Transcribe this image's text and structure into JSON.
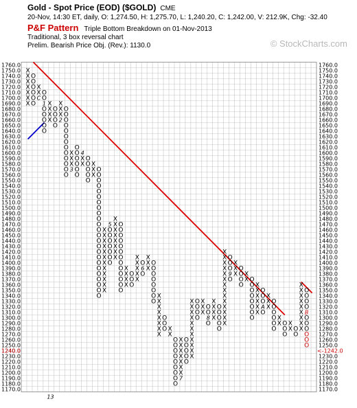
{
  "header": {
    "title": "Gold - Spot Price (EOD) ($GOLD)",
    "exchange": "CME",
    "quote": "20-Nov, 14:30 ET, daily, O: 1,274.50, H: 1,275.70, L: 1,240.20, C: 1,242.00, V: 212.9K, Chg: -32.40",
    "pattern_label": "P&F Pattern",
    "pattern_text": "Triple Bottom Breakdown on 01-Nov-2013",
    "method": "Traditional, 3 box reversal chart",
    "objective": "Prelim. Bearish Price Obj. (Rev.): 1130.0"
  },
  "watermark": "© StockCharts.com",
  "colors": {
    "x": "#000000",
    "o": "#000000",
    "current": "#cc0000",
    "trendline": "#dd0000",
    "support": "#0000cc",
    "grid": "#c8c8c8"
  },
  "chart_data": {
    "type": "point-and-figure",
    "box_size": 10,
    "reversal": 3,
    "ylim": [
      1170,
      1760
    ],
    "y_ticks": [
      1760,
      1750,
      1740,
      1730,
      1720,
      1710,
      1700,
      1690,
      1680,
      1670,
      1660,
      1650,
      1640,
      1630,
      1620,
      1610,
      1600,
      1590,
      1580,
      1570,
      1560,
      1550,
      1540,
      1530,
      1520,
      1510,
      1500,
      1490,
      1480,
      1470,
      1460,
      1450,
      1440,
      1430,
      1420,
      1410,
      1400,
      1390,
      1380,
      1370,
      1360,
      1350,
      1340,
      1330,
      1320,
      1310,
      1300,
      1290,
      1280,
      1270,
      1260,
      1250,
      1240,
      1230,
      1220,
      1210,
      1200,
      1190,
      1180,
      1170
    ],
    "right_y_ticks": [
      1760,
      1750,
      1740,
      1730,
      1720,
      1710,
      1700,
      1690,
      1680,
      1670,
      1660,
      1650,
      1640,
      1630,
      1620,
      1610,
      1600,
      1590,
      1580,
      1570,
      1560,
      1550,
      1540,
      1530,
      1520,
      1510,
      1500,
      1490,
      1480,
      1470,
      1460,
      1450,
      1440,
      1430,
      1420,
      1410,
      1400,
      1390,
      1380,
      1370,
      1360,
      1350,
      1340,
      1330,
      1320,
      1310,
      1300,
      1290,
      1280,
      1270,
      1260,
      1250,
      1230,
      1220,
      1210,
      1200,
      1190,
      1180,
      1170
    ],
    "last_price_label": "1240.0",
    "last_price_right_label": "<-1242.0",
    "x_labels": [
      {
        "col": 4,
        "text": "13"
      }
    ],
    "columns": [
      {
        "type": "X",
        "low": 1690,
        "high": 1750
      },
      {
        "type": "O",
        "low": 1690,
        "high": 1740
      },
      {
        "type": "X",
        "low": 1700,
        "high": 1720,
        "labels": [
          {
            "price": 1700,
            "text": "C"
          }
        ]
      },
      {
        "type": "O",
        "low": 1640,
        "high": 1710,
        "labels": [
          {
            "price": 1690,
            "text": "1"
          }
        ]
      },
      {
        "type": "X",
        "low": 1660,
        "high": 1690
      },
      {
        "type": "O",
        "low": 1650,
        "high": 1680
      },
      {
        "type": "X",
        "low": 1660,
        "high": 1690,
        "labels": [
          {
            "price": 1660,
            "text": "2"
          }
        ]
      },
      {
        "type": "O",
        "low": 1560,
        "high": 1680
      },
      {
        "type": "X",
        "low": 1570,
        "high": 1600,
        "labels": [
          {
            "price": 1570,
            "text": "3"
          }
        ]
      },
      {
        "type": "O",
        "low": 1560,
        "high": 1610
      },
      {
        "type": "X",
        "low": 1580,
        "high": 1600,
        "labels": [
          {
            "price": 1600,
            "text": "4"
          }
        ]
      },
      {
        "type": "O",
        "low": 1550,
        "high": 1590
      },
      {
        "type": "X",
        "low": 1560,
        "high": 1580
      },
      {
        "type": "O",
        "low": 1340,
        "high": 1570
      },
      {
        "type": "X",
        "low": 1350,
        "high": 1460
      },
      {
        "type": "O",
        "low": 1400,
        "high": 1470,
        "labels": [
          {
            "price": 1470,
            "text": "5"
          }
        ]
      },
      {
        "type": "X",
        "low": 1410,
        "high": 1480
      },
      {
        "type": "O",
        "low": 1350,
        "high": 1470
      },
      {
        "type": "X",
        "low": 1360,
        "high": 1390
      },
      {
        "type": "O",
        "low": 1360,
        "high": 1380
      },
      {
        "type": "X",
        "low": 1370,
        "high": 1410
      },
      {
        "type": "O",
        "low": 1380,
        "high": 1400,
        "labels": [
          {
            "price": 1390,
            "text": "6"
          }
        ]
      },
      {
        "type": "X",
        "low": 1390,
        "high": 1410
      },
      {
        "type": "O",
        "low": 1330,
        "high": 1400
      },
      {
        "type": "X",
        "low": 1270,
        "high": 1340
      },
      {
        "type": "O",
        "low": 1280,
        "high": 1300
      },
      {
        "type": "X",
        "low": 1270,
        "high": 1280
      },
      {
        "type": "O",
        "low": 1180,
        "high": 1260
      },
      {
        "type": "X",
        "low": 1190,
        "high": 1260,
        "labels": [
          {
            "price": 1190,
            "text": "7"
          }
        ]
      },
      {
        "type": "O",
        "low": 1220,
        "high": 1260
      },
      {
        "type": "X",
        "low": 1230,
        "high": 1330
      },
      {
        "type": "O",
        "low": 1300,
        "high": 1330
      },
      {
        "type": "X",
        "low": 1310,
        "high": 1330
      },
      {
        "type": "O",
        "low": 1290,
        "high": 1320,
        "labels": [
          {
            "price": 1300,
            "text": "8"
          }
        ]
      },
      {
        "type": "X",
        "low": 1300,
        "high": 1330
      },
      {
        "type": "O",
        "low": 1280,
        "high": 1320
      },
      {
        "type": "X",
        "low": 1290,
        "high": 1420
      },
      {
        "type": "O",
        "low": 1370,
        "high": 1410,
        "labels": [
          {
            "price": 1380,
            "text": "9"
          }
        ]
      },
      {
        "type": "X",
        "low": 1380,
        "high": 1400
      },
      {
        "type": "O",
        "low": 1360,
        "high": 1390
      },
      {
        "type": "X",
        "low": 1370,
        "high": 1380
      },
      {
        "type": "O",
        "low": 1300,
        "high": 1370
      },
      {
        "type": "X",
        "low": 1310,
        "high": 1360
      },
      {
        "type": "O",
        "low": 1310,
        "high": 1350,
        "labels": [
          {
            "price": 1320,
            "text": "A"
          }
        ]
      },
      {
        "type": "X",
        "low": 1320,
        "high": 1340
      },
      {
        "type": "O",
        "low": 1280,
        "high": 1330
      },
      {
        "type": "X",
        "low": 1290,
        "high": 1300
      },
      {
        "type": "O",
        "low": 1270,
        "high": 1290
      },
      {
        "type": "X",
        "low": 1280,
        "high": 1290
      },
      {
        "type": "O",
        "low": 1270,
        "high": 1280
      },
      {
        "type": "X",
        "low": 1280,
        "high": 1360
      },
      {
        "type": "O",
        "low": 1250,
        "high": 1350,
        "current_from": 1270,
        "labels": [
          {
            "price": 1310,
            "text": "B",
            "current": true
          }
        ]
      }
    ],
    "trendlines": [
      {
        "kind": "bearish-resistance",
        "from": {
          "col": 1,
          "price": 1760
        },
        "to": {
          "col": 47,
          "price": 1300
        }
      },
      {
        "kind": "bearish-resistance",
        "from": {
          "col": 50,
          "price": 1360
        },
        "to": {
          "col": 52,
          "price": 1340
        }
      },
      {
        "kind": "bullish-support",
        "from": {
          "col": 0,
          "price": 1620
        },
        "to": {
          "col": 3,
          "price": 1650
        }
      }
    ]
  }
}
